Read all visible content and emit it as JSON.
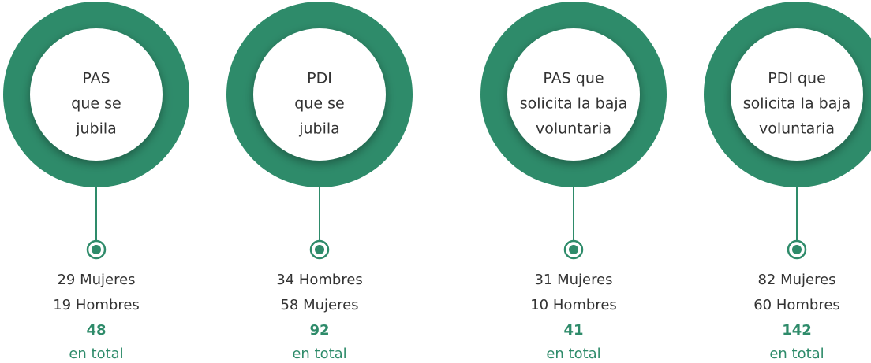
{
  "items": [
    {
      "label": [
        "PAS",
        "que se",
        "jubila"
      ],
      "lines": [
        "29 Mujeres",
        "19 Hombres"
      ],
      "total": 48,
      "total_label": "en total"
    },
    {
      "label": [
        "PDI",
        "que se",
        "jubila"
      ],
      "lines": [
        "34 Hombres",
        "58 Mujeres"
      ],
      "total": 92,
      "total_label": "en total"
    },
    {
      "label": [
        "PAS que",
        "solicita la baja",
        "voluntaria"
      ],
      "lines": [
        "31 Mujeres",
        "10 Hombres"
      ],
      "total": 41,
      "total_label": "en total"
    },
    {
      "label": [
        "PDI que",
        "solicita la baja",
        "voluntaria"
      ],
      "lines": [
        "82 Mujeres",
        "60 Hombres"
      ],
      "total": 142,
      "total_label": "en total"
    }
  ]
}
